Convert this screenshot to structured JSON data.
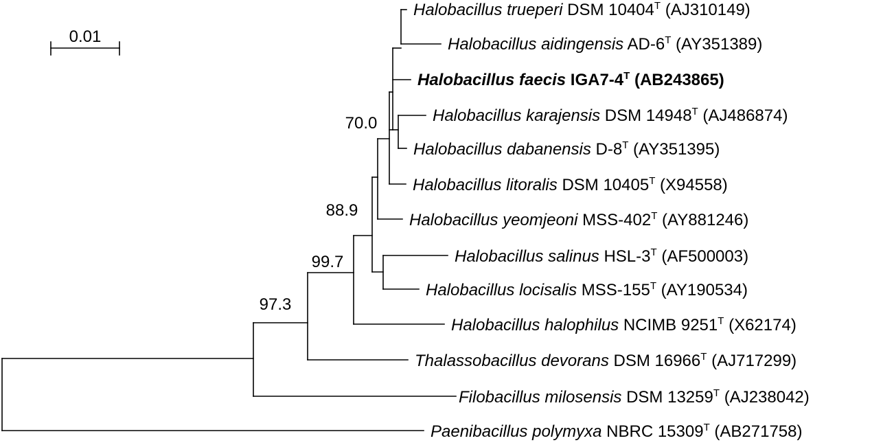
{
  "scale_bar": {
    "label": "0.01"
  },
  "taxa": [
    {
      "id": "trueperi",
      "genus": "Halobacillus",
      "species": "trueperi",
      "strain": "DSM 10404",
      "type_mark": "T",
      "accession": "(AJ310149)",
      "bold": false
    },
    {
      "id": "aidingensis",
      "genus": "Halobacillus",
      "species": "aidingensis",
      "strain": "AD-6",
      "type_mark": "T",
      "accession": "(AY351389)",
      "bold": false
    },
    {
      "id": "faecis",
      "genus": "Halobacillus",
      "species": "faecis",
      "strain": "IGA7-4",
      "type_mark": "T",
      "accession": "(AB243865)",
      "bold": true
    },
    {
      "id": "karajensis",
      "genus": "Halobacillus",
      "species": "karajensis",
      "strain": "DSM 14948",
      "type_mark": "T",
      "accession": "(AJ486874)",
      "bold": false
    },
    {
      "id": "dabanensis",
      "genus": "Halobacillus",
      "species": "dabanensis",
      "strain": "D-8",
      "type_mark": "T",
      "accession": "(AY351395)",
      "bold": false
    },
    {
      "id": "litoralis",
      "genus": "Halobacillus",
      "species": "litoralis",
      "strain": "DSM 10405",
      "type_mark": "T",
      "accession": "(X94558)",
      "bold": false
    },
    {
      "id": "yeomjeoni",
      "genus": "Halobacillus",
      "species": "yeomjeoni",
      "strain": "MSS-402",
      "type_mark": "T",
      "accession": "(AY881246)",
      "bold": false
    },
    {
      "id": "salinus",
      "genus": "Halobacillus",
      "species": "salinus",
      "strain": "HSL-3",
      "type_mark": "T",
      "accession": "(AF500003)",
      "bold": false
    },
    {
      "id": "locisalis",
      "genus": "Halobacillus",
      "species": "locisalis",
      "strain": "MSS-155",
      "type_mark": "T",
      "accession": "(AY190534)",
      "bold": false
    },
    {
      "id": "halophilus",
      "genus": "Halobacillus",
      "species": "halophilus",
      "strain": "NCIMB 9251",
      "type_mark": "T",
      "accession": "(X62174)",
      "bold": false
    },
    {
      "id": "devorans",
      "genus": "Thalassobacillus",
      "species": "devorans",
      "strain": "DSM 16966",
      "type_mark": "T",
      "accession": "(AJ717299)",
      "bold": false
    },
    {
      "id": "milosensis",
      "genus": "Filobacillus",
      "species": "milosensis",
      "strain": "DSM 13259",
      "type_mark": "T",
      "accession": "(AJ238042)",
      "bold": false
    },
    {
      "id": "polymyxa",
      "genus": "Paenibacillus",
      "species": "polymyxa",
      "strain": "NBRC 15309",
      "type_mark": "T",
      "accession": "(AB271758)",
      "bold": false
    }
  ],
  "bootstrap": [
    {
      "node": "karajensis-dabanensis",
      "value": "70.0"
    },
    {
      "node": "halobacillus-core",
      "value": "88.9"
    },
    {
      "node": "halobacillus-all",
      "value": "99.7"
    },
    {
      "node": "halobacillus-thalasso",
      "value": "97.3"
    }
  ]
}
